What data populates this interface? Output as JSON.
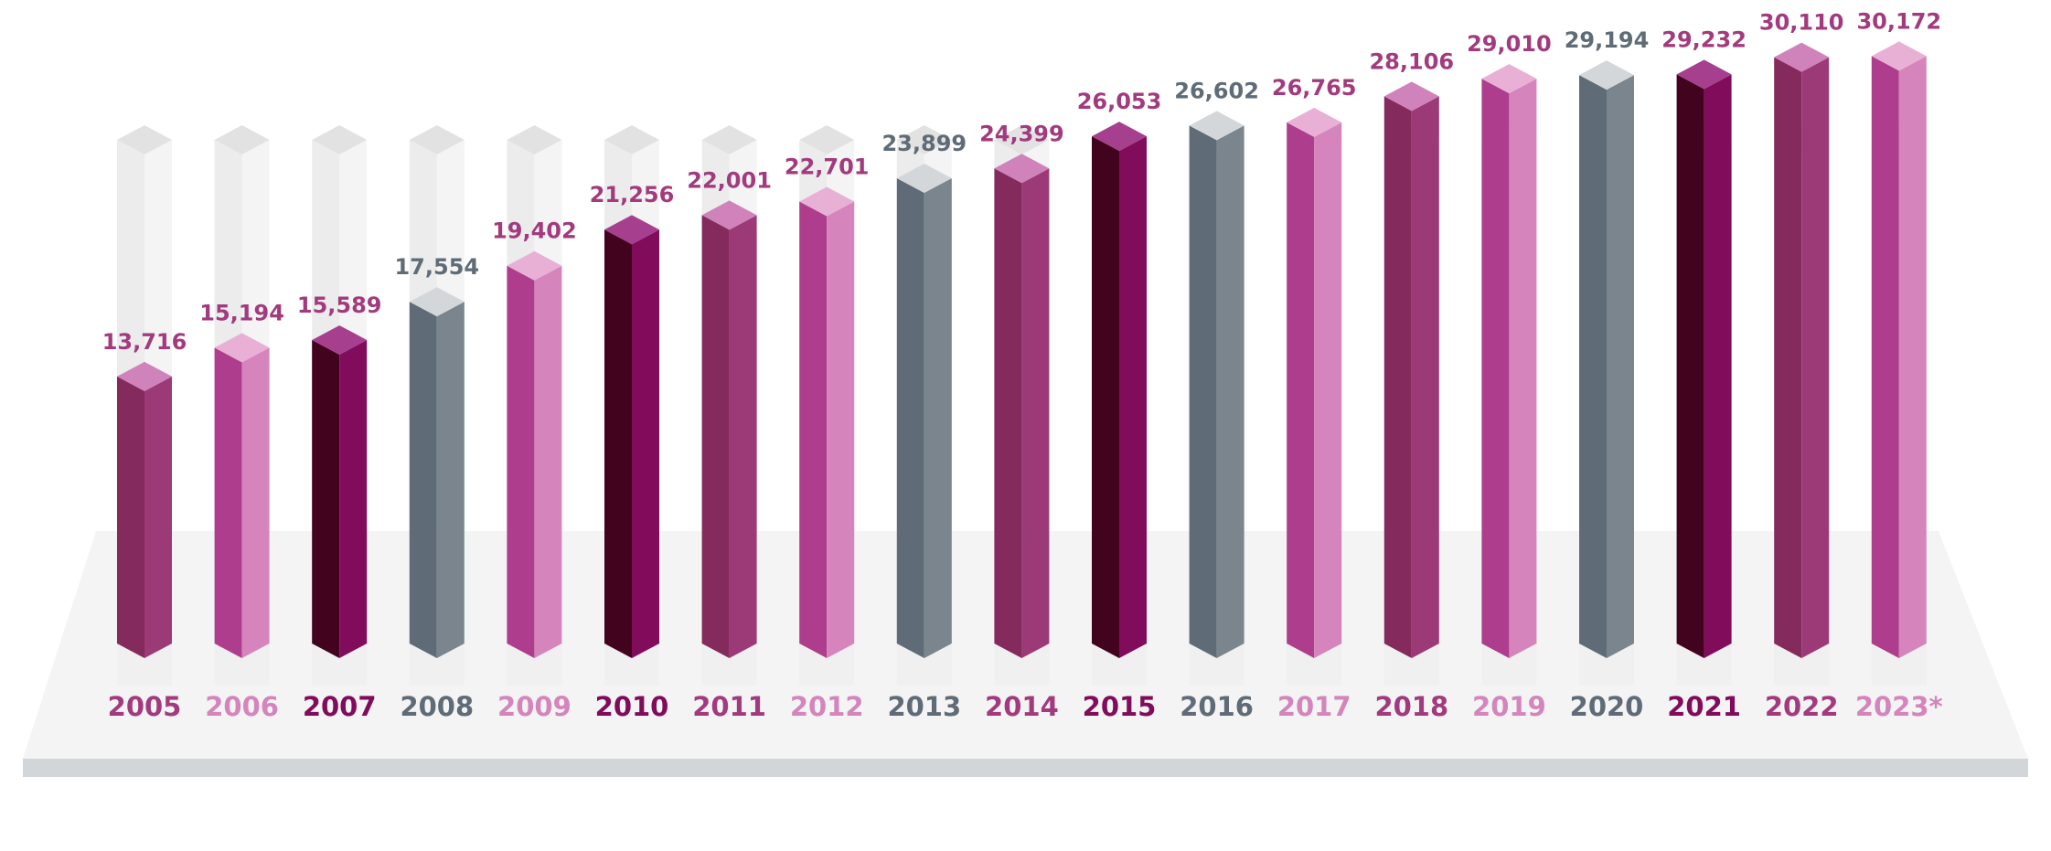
{
  "chart_data": {
    "type": "bar",
    "title": "",
    "xlabel": "",
    "ylabel": "",
    "categories": [
      "2005",
      "2006",
      "2007",
      "2008",
      "2009",
      "2010",
      "2011",
      "2012",
      "2013",
      "2014",
      "2015",
      "2016",
      "2017",
      "2018",
      "2019",
      "2020",
      "2021",
      "2022",
      "2023*"
    ],
    "values": [
      13716,
      15194,
      15589,
      17554,
      19402,
      21256,
      22001,
      22701,
      23899,
      24399,
      26053,
      26602,
      26765,
      28106,
      29010,
      29194,
      29232,
      30110,
      30172
    ],
    "value_labels": [
      "13,716",
      "15,194",
      "15,589",
      "17,554",
      "19,402",
      "21,256",
      "22,001",
      "22,701",
      "23,899",
      "24,399",
      "26,053",
      "26,602",
      "26,765",
      "28,106",
      "29,010",
      "29,194",
      "29,232",
      "30,110",
      "30,172"
    ],
    "ylim": [
      0,
      32000
    ],
    "grid": false,
    "legend": "none",
    "bar_styles": [
      "plum",
      "pink",
      "dark",
      "gray",
      "magenta",
      "dark",
      "plum",
      "magenta",
      "gray",
      "plum",
      "dark",
      "gray",
      "magenta",
      "plum",
      "magenta",
      "gray",
      "dark",
      "plum",
      "magenta"
    ]
  },
  "colors": {
    "plum": {
      "front": "#842a5c",
      "side": "#9b3a77",
      "top": "#d082bb",
      "label": "#a23b7e",
      "year": "#a23b7e"
    },
    "pink": {
      "front": "#ae3e8d",
      "side": "#d585bc",
      "top": "#e8b0d5",
      "label": "#a23b7e",
      "year": "#d485bb"
    },
    "dark": {
      "front": "#42031f",
      "side": "#800c5b",
      "top": "#a63f8e",
      "label": "#a23b7e",
      "year": "#800c5b"
    },
    "gray": {
      "front": "#5f6c77",
      "side": "#7a858e",
      "top": "#d4d7da",
      "label": "#5f6c77",
      "year": "#5f6c77"
    },
    "magenta": {
      "front": "#ae3e8d",
      "side": "#d585bc",
      "top": "#e8b0d5",
      "label": "#a23b7e",
      "year": "#d485bb"
    },
    "ghost_front": "#ececec",
    "ghost_side": "#f4f4f4",
    "ghost_top": "#e2e2e2",
    "platform_top": "#f4f4f4",
    "platform_edge": "#d3d6d8"
  }
}
